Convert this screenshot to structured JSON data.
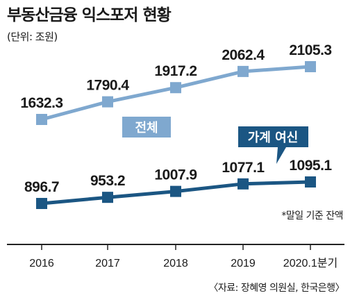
{
  "title": "부동산금융 익스포저 현황",
  "unit": "(단위: 조원)",
  "note": "*말일 기준 잔액",
  "source": "〈자료: 장혜영 의원실, 한국은행〉",
  "colors": {
    "total": "#7fa8cf",
    "household": "#1b5683",
    "axis": "#222222"
  },
  "chart_data": {
    "type": "line",
    "categories": [
      "2016",
      "2017",
      "2018",
      "2019",
      "2020.1분기"
    ],
    "series": [
      {
        "name": "전체",
        "values": [
          1632.3,
          1790.4,
          1917.2,
          2062.4,
          2105.3
        ],
        "labels": [
          "1632.3",
          "1790.4",
          "1917.2",
          "2062.4",
          "2105.3"
        ]
      },
      {
        "name": "가계 여신",
        "values": [
          896.7,
          953.2,
          1007.9,
          1077.1,
          1095.1
        ],
        "labels": [
          "896.7",
          "953.2",
          "1007.9",
          "1077.1",
          "1095.1"
        ]
      }
    ],
    "title": "부동산금융 익스포저 현황",
    "ylabel": "(단위: 조원)",
    "grid": false,
    "legend": "inline"
  }
}
